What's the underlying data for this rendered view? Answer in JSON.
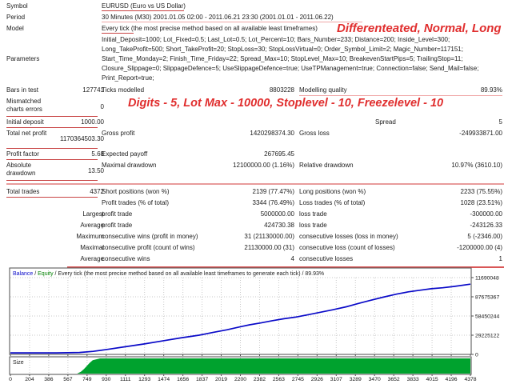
{
  "colors": {
    "underline_strong": "#c84444",
    "underline_light": "#f0a8a8",
    "separator": "#e89c9c",
    "red_separator": "#d95757",
    "annotation": "#e02e2e"
  },
  "annotations": {
    "note1": "Differenteated, Normal, Long",
    "note2": "Digits - 5, Lot Max - 10000, Stoplevel - 10, Freezelevel - 10"
  },
  "info": {
    "symbol": {
      "label": "Symbol",
      "value": "EURUSD (Euro vs US Dollar)"
    },
    "period": {
      "label": "Period",
      "value": "30 Minutes (M30) 2001.01.05 02:00 - 2011.06.21 23:30 (2001.01.01 - 2011.06.22)"
    },
    "model": {
      "label": "Model",
      "value": "Every tick (the most precise method based on all available least timeframes)"
    },
    "parameters": {
      "label": "Parameters",
      "lines": [
        "Initial_Deposit=1000; Lot_Fixed=0.5; Last_Lot=0.5; Lot_Percent=10; Bars_Number=233; Distance=200; Inside_Level=300;",
        "Long_TakeProfit=500; Short_TakeProfit=20; StopLoss=30; StopLossVirtual=0; Order_Symbol_Limit=2; Magic_Number=117151;",
        "Start_Time_Monday=2; Finish_Time_Friday=22; Spread_Max=10; StopLevel_Max=10; BreakevenStartPips=5; TrailingStop=11;",
        "Closure_Slippage=0; SlippageDefence=5; UseSlippageDefence=true; UseTPManagement=true; Connection=false; Send_Mail=false;",
        "Print_Report=true;"
      ]
    }
  },
  "stats": {
    "rows": [
      {
        "name": "bars-ticks-quality",
        "cells": {
          "a": "Bars in test",
          "b": "127741",
          "c": "Ticks modelled",
          "d": "8803228",
          "e": "Modelling quality",
          "f": "89.93%"
        },
        "ul_ef": true
      },
      {
        "name": "mismatched-charts-errors",
        "tall": true,
        "cells": {
          "a": "Mismatched charts errors",
          "b": "0"
        },
        "ul_ab": true
      },
      {
        "name": "initial-deposit-spread",
        "cells": {
          "a": "Initial deposit",
          "b": "1000.00",
          "e": "Spread",
          "f": "5"
        },
        "ul_ab": true,
        "e_indent": true
      },
      {
        "name": "net-profit-gross",
        "tall": true,
        "cells": {
          "a": "Total net profit",
          "b": "1170364503.30",
          "c": "Gross profit",
          "d": "1420298374.30",
          "e": "Gross loss",
          "f": "-249933871.00"
        },
        "ul_ab": true
      },
      {
        "name": "profit-factor-payoff",
        "cells": {
          "a": "Profit factor",
          "b": "5.68",
          "c": "Expected payoff",
          "d": "267695.45"
        },
        "ul_ab": true
      },
      {
        "name": "drawdown",
        "tall": true,
        "cells": {
          "a": "Absolute drawdown",
          "b": "13.50",
          "c": "Maximal drawdown",
          "d": "12100000.00 (1.16%)",
          "e": "Relative drawdown",
          "f": "10.97% (3610.10)"
        },
        "ul_ab": true,
        "full_line": true,
        "gap": true
      },
      {
        "name": "total-trades-positions",
        "cells": {
          "a": "Total trades",
          "b": "4372",
          "c": "Short positions (won %)",
          "d": "2139 (77.47%)",
          "e": "Long positions (won %)",
          "f": "2233 (75.55%)"
        },
        "ul_ab": true
      },
      {
        "name": "profit-loss-trades",
        "cells": {
          "c": "Profit trades (% of total)",
          "d": "3344 (76.49%)",
          "e": "Loss trades (% of total)",
          "f": "1028 (23.51%)"
        }
      },
      {
        "name": "largest-trade",
        "cells": {
          "b": "Largest",
          "c": "profit trade",
          "d": "5000000.00",
          "e": "loss trade",
          "f": "-300000.00"
        }
      },
      {
        "name": "average-trade",
        "cells": {
          "b": "Average",
          "c": "profit trade",
          "d": "424730.38",
          "e": "loss trade",
          "f": "-243126.33"
        }
      },
      {
        "name": "maximum-consecutive",
        "cells": {
          "b": "Maximum",
          "c": "consecutive wins (profit in money)",
          "d": "31 (21130000.00)",
          "e": "consecutive losses (loss in money)",
          "f": "5 (-2346.00)"
        }
      },
      {
        "name": "maximal-consecutive",
        "cells": {
          "b": "Maximal",
          "c": "consecutive profit (count of wins)",
          "d": "21130000.00 (31)",
          "e": "consecutive loss (count of losses)",
          "f": "-1200000.00 (4)"
        }
      },
      {
        "name": "average-consecutive",
        "cells": {
          "b": "Average",
          "c": "consecutive wins",
          "d": "4",
          "e": "consecutive losses",
          "f": "1"
        },
        "red_line": true
      }
    ]
  },
  "chart_data": {
    "type": "line",
    "title": "Balance / Equity / Every tick (the most precise method based on all available least timeframes to generate each tick) / 89.93%",
    "legend": {
      "balance": "Balance",
      "equity": "Equity",
      "equity_color": "#008000",
      "suffix": " / Every tick (the most precise method based on all available least timeframes to generate each tick) / 89.93%"
    },
    "grid": true,
    "legend_position": "top-left",
    "y_tick_labels": [
      "11690048",
      "87675367",
      "58450244",
      "29225122",
      "0"
    ],
    "x_tick_labels": [
      "0",
      "204",
      "386",
      "567",
      "749",
      "930",
      "1111",
      "1293",
      "1474",
      "1656",
      "1837",
      "2019",
      "2200",
      "2382",
      "2563",
      "2745",
      "2926",
      "3107",
      "3289",
      "3470",
      "3652",
      "3833",
      "4015",
      "4196",
      "4378"
    ],
    "series": [
      {
        "name": "Balance",
        "color": "#0a0ac8",
        "points": [
          [
            0,
            0.02
          ],
          [
            0.1,
            0.02
          ],
          [
            0.15,
            0.025
          ],
          [
            0.18,
            0.04
          ],
          [
            0.21,
            0.065
          ],
          [
            0.25,
            0.1
          ],
          [
            0.29,
            0.135
          ],
          [
            0.33,
            0.175
          ],
          [
            0.37,
            0.215
          ],
          [
            0.41,
            0.25
          ],
          [
            0.44,
            0.285
          ],
          [
            0.47,
            0.32
          ],
          [
            0.5,
            0.36
          ],
          [
            0.52,
            0.385
          ],
          [
            0.545,
            0.41
          ],
          [
            0.57,
            0.44
          ],
          [
            0.595,
            0.465
          ],
          [
            0.62,
            0.485
          ],
          [
            0.65,
            0.52
          ],
          [
            0.675,
            0.55
          ],
          [
            0.7,
            0.58
          ],
          [
            0.73,
            0.62
          ],
          [
            0.755,
            0.66
          ],
          [
            0.78,
            0.7
          ],
          [
            0.81,
            0.745
          ],
          [
            0.84,
            0.785
          ],
          [
            0.865,
            0.815
          ],
          [
            0.89,
            0.835
          ],
          [
            0.915,
            0.855
          ],
          [
            0.94,
            0.868
          ],
          [
            0.965,
            0.885
          ],
          [
            1,
            0.915
          ]
        ]
      }
    ],
    "size_panel": {
      "label": "Size",
      "color": "#00a22e",
      "ramp_points": [
        [
          0.145,
          0
        ],
        [
          0.153,
          0.12
        ],
        [
          0.16,
          0.3
        ],
        [
          0.166,
          0.5
        ],
        [
          0.172,
          0.7
        ],
        [
          0.179,
          0.88
        ],
        [
          0.195,
          1
        ],
        [
          1,
          1
        ]
      ]
    }
  }
}
